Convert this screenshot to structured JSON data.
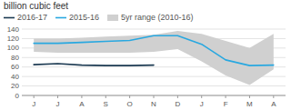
{
  "chart_data": {
    "type": "line",
    "title": "billion cubic feet",
    "categories": [
      "J",
      "J",
      "A",
      "S",
      "O",
      "N",
      "D",
      "J",
      "F",
      "M",
      "A"
    ],
    "series": [
      {
        "name": "2016-17",
        "color": "#1c3a52",
        "values": [
          65,
          67,
          64,
          63,
          63,
          64,
          null,
          null,
          null,
          null,
          null
        ]
      },
      {
        "name": "2015-16",
        "color": "#29a8e0",
        "values": [
          110,
          110,
          112,
          114,
          116,
          126,
          126,
          108,
          75,
          63,
          64
        ]
      },
      {
        "name": "5yr range (2010-16)",
        "type": "area",
        "color": "#d0d0d0",
        "values": [
          120,
          120,
          122,
          124,
          126,
          128,
          136,
          130,
          115,
          100,
          130
        ],
        "lower": [
          92,
          90,
          90,
          90,
          90,
          92,
          98,
          72,
          42,
          22,
          55
        ]
      }
    ],
    "ylim": [
      0,
      140
    ],
    "yticks": [
      0,
      20,
      40,
      60,
      80,
      100,
      120,
      140
    ],
    "grid": true,
    "legend": "top"
  }
}
